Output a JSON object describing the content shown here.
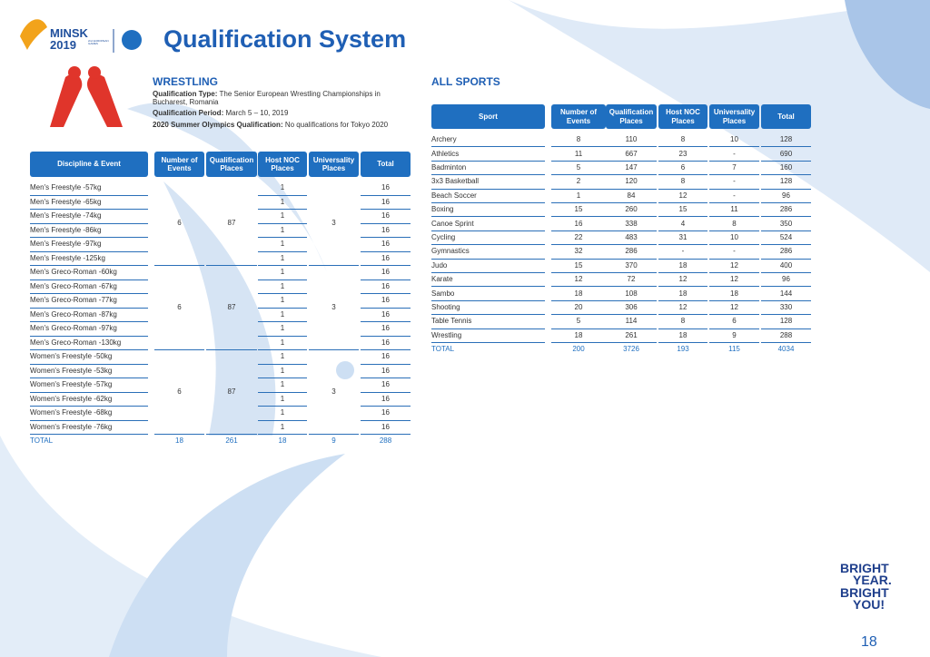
{
  "header": {
    "logo": {
      "line1": "MINSK",
      "line2": "2019",
      "sub": "2nd EUROPEAN GAMES"
    },
    "title": "Qualification System"
  },
  "wrestling": {
    "title": "WRESTLING",
    "info": [
      {
        "label": "Qualification Type:",
        "text": "The Senior European Wrestling Championships in Bucharest, Romania"
      },
      {
        "label": "Qualification Period:",
        "text": "March 5 – 10, 2019"
      },
      {
        "label": "2020 Summer Olympics Qualification:",
        "text": "No qualifications for Tokyo 2020"
      }
    ],
    "table": {
      "headers": [
        "Discipline & Event",
        "Number of Events",
        "Qualification Places",
        "Host NOC Places",
        "Universality Places",
        "Total"
      ],
      "rows": [
        {
          "event": "Men's Freestyle -57kg",
          "host": 1,
          "total": 16
        },
        {
          "event": "Men's Freestyle -65kg",
          "host": 1,
          "total": 16
        },
        {
          "event": "Men's Freestyle -74kg",
          "host": 1,
          "total": 16
        },
        {
          "event": "Men's Freestyle -86kg",
          "host": 1,
          "total": 16
        },
        {
          "event": "Men's Freestyle -97kg",
          "host": 1,
          "total": 16
        },
        {
          "event": "Men's Freestyle -125kg",
          "host": 1,
          "total": 16
        },
        {
          "event": "Men's Greco-Roman -60kg",
          "host": 1,
          "total": 16
        },
        {
          "event": "Men's Greco-Roman -67kg",
          "host": 1,
          "total": 16
        },
        {
          "event": "Men's Greco-Roman -77kg",
          "host": 1,
          "total": 16
        },
        {
          "event": "Men's Greco-Roman -87kg",
          "host": 1,
          "total": 16
        },
        {
          "event": "Men's Greco-Roman -97kg",
          "host": 1,
          "total": 16
        },
        {
          "event": "Men's Greco-Roman -130kg",
          "host": 1,
          "total": 16
        },
        {
          "event": "Women's Freestyle -50kg",
          "host": 1,
          "total": 16
        },
        {
          "event": "Women's Freestyle -53kg",
          "host": 1,
          "total": 16
        },
        {
          "event": "Women's Freestyle -57kg",
          "host": 1,
          "total": 16
        },
        {
          "event": "Women's Freestyle -62kg",
          "host": 1,
          "total": 16
        },
        {
          "event": "Women's Freestyle -68kg",
          "host": 1,
          "total": 16
        },
        {
          "event": "Women's Freestyle -76kg",
          "host": 1,
          "total": 16
        }
      ],
      "groups": [
        {
          "number_of_events": 6,
          "qualification_places": 87,
          "universality_places": 3
        },
        {
          "number_of_events": 6,
          "qualification_places": 87,
          "universality_places": 3
        },
        {
          "number_of_events": 6,
          "qualification_places": 87,
          "universality_places": 3
        }
      ],
      "total": [
        "TOTAL",
        18,
        261,
        18,
        9,
        288
      ]
    }
  },
  "all_sports": {
    "title": "ALL SPORTS",
    "table": {
      "headers": [
        "Sport",
        "Number of Events",
        "Qualification Places",
        "Host NOC Places",
        "Universality Places",
        "Total"
      ],
      "rows": [
        [
          "Archery",
          8,
          110,
          8,
          10,
          128
        ],
        [
          "Athletics",
          11,
          667,
          23,
          "-",
          690
        ],
        [
          "Badminton",
          5,
          147,
          6,
          7,
          160
        ],
        [
          "3x3 Basketball",
          2,
          120,
          8,
          "-",
          128
        ],
        [
          "Beach Soccer",
          1,
          84,
          12,
          "-",
          96
        ],
        [
          "Boxing",
          15,
          260,
          15,
          11,
          286
        ],
        [
          "Canoe Sprint",
          16,
          338,
          4,
          8,
          350
        ],
        [
          "Cycling",
          22,
          483,
          31,
          10,
          524
        ],
        [
          "Gymnastics",
          32,
          286,
          "-",
          "-",
          286
        ],
        [
          "Judo",
          15,
          370,
          18,
          12,
          400
        ],
        [
          "Karate",
          12,
          72,
          12,
          12,
          96
        ],
        [
          "Sambo",
          18,
          108,
          18,
          18,
          144
        ],
        [
          "Shooting",
          20,
          306,
          12,
          12,
          330
        ],
        [
          "Table Tennis",
          5,
          114,
          8,
          6,
          128
        ],
        [
          "Wrestling",
          18,
          261,
          18,
          9,
          288
        ]
      ],
      "total": [
        "TOTAL",
        200,
        3726,
        193,
        115,
        4034
      ]
    }
  },
  "footer": {
    "slogan": [
      "BRIGHT",
      "YEAR.",
      "BRIGHT",
      "YOU!"
    ],
    "page": "18"
  }
}
